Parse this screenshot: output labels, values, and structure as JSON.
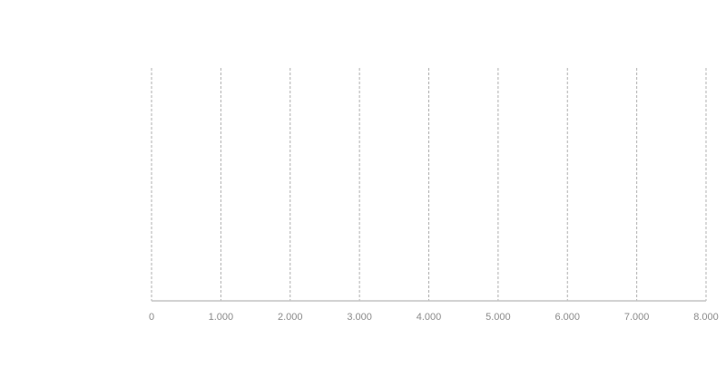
{
  "chart_data": {
    "type": "bar",
    "xlim": [
      0,
      8000
    ],
    "xticks": [
      0,
      {
        "value": 1000,
        "label": "1.000"
      },
      {
        "value": 2000,
        "label": "2.000"
      },
      {
        "value": 3000,
        "label": "3.000"
      },
      {
        "value": 4000,
        "label": "4.000"
      },
      {
        "value": 5000,
        "label": "5.000"
      },
      {
        "value": 6000,
        "label": "6.000"
      },
      {
        "value": 7000,
        "label": "7.000"
      },
      {
        "value": 8000,
        "label": "8.000"
      }
    ],
    "grid": true
  }
}
